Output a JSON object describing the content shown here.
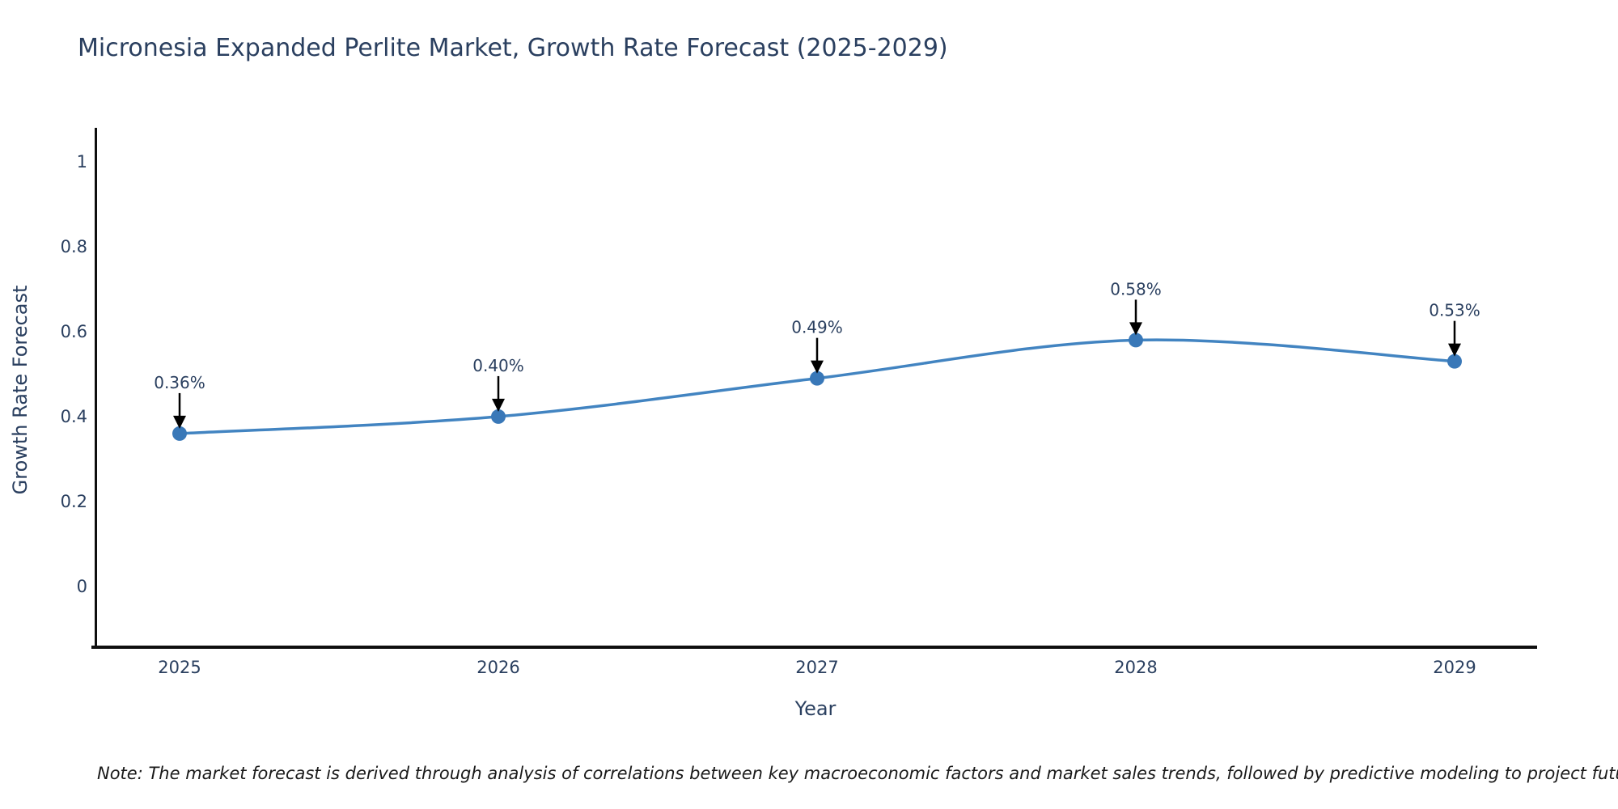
{
  "title": "Micronesia Expanded Perlite Market, Growth Rate Forecast (2025-2029)",
  "note": "Note: The market forecast is derived through analysis of correlations between key macroeconomic factors and market sales trends, followed by predictive modeling to project future sales",
  "chart_data": {
    "type": "line",
    "title": "Micronesia Expanded Perlite Market, Growth Rate Forecast (2025-2029)",
    "x": [
      2025,
      2026,
      2027,
      2028,
      2029
    ],
    "series": [
      {
        "name": "Growth Rate Forecast",
        "values": [
          0.36,
          0.4,
          0.49,
          0.58,
          0.53
        ]
      }
    ],
    "point_labels": [
      "0.36%",
      "0.40%",
      "0.49%",
      "0.58%",
      "0.53%"
    ],
    "xlabel": "Year",
    "ylabel": "Growth Rate Forecast",
    "yticks": [
      0,
      0.2,
      0.4,
      0.6,
      0.8,
      1
    ],
    "ylim": [
      -0.143,
      1.076
    ],
    "grid": false,
    "legend": false,
    "curve": "spline",
    "line_color": "#4284c1",
    "marker_color": "#3978b8",
    "arrow_color": "#000000",
    "annotation_color": "#2a3f5f",
    "axis_color": "#0f0f0f",
    "text_color": "#2a3f5f",
    "background_color": "#ffffff"
  }
}
